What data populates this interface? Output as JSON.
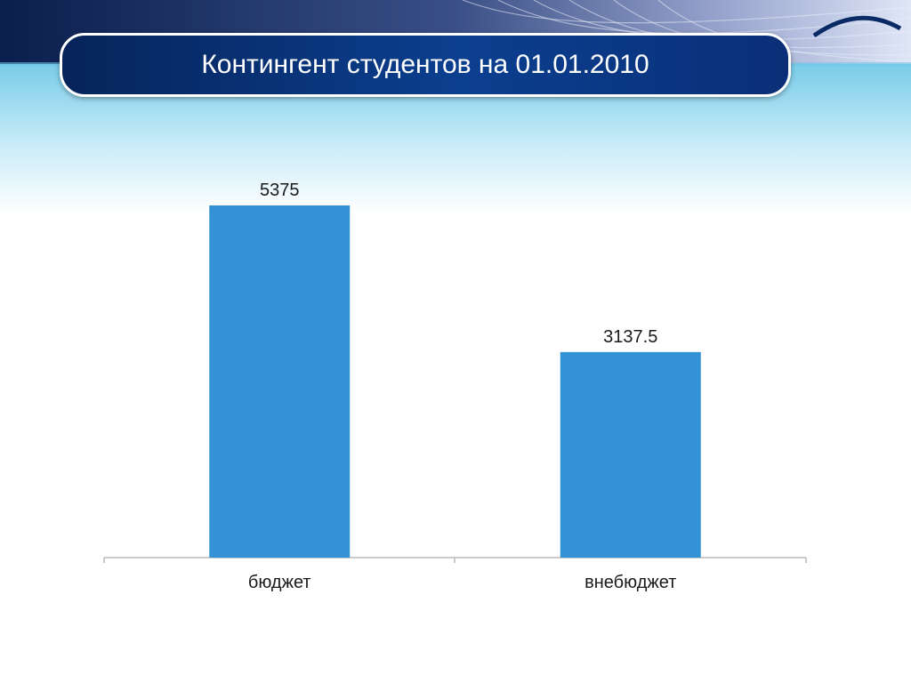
{
  "slide": {
    "title": "Контингент студентов на 01.01.2010"
  },
  "chart_data": {
    "type": "bar",
    "categories": [
      "бюджет",
      "внебюджет"
    ],
    "values": [
      5375,
      3137.5
    ],
    "value_labels": [
      "5375",
      "3137.5"
    ],
    "title": "",
    "xlabel": "",
    "ylabel": "",
    "ylim": [
      0,
      5375
    ],
    "grid": false,
    "bar_color": "#3392d6"
  },
  "theme": {
    "title_bar_color": "#0b3f8f",
    "band_color": "#8fd3ee"
  }
}
